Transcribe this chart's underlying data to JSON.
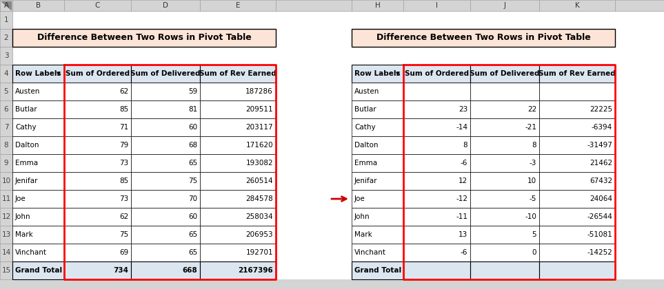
{
  "title": "Difference Between Two Rows in Pivot Table",
  "title_bg": "#fce4d6",
  "header_bg": "#dce6f1",
  "grand_total_bg": "#dce6f1",
  "excel_header_bg": "#d4d4d4",
  "cell_bg": "#ffffff",
  "arrow_color": "#cc0000",
  "table1_headers": [
    "Row Labels",
    "Sum of Ordered",
    "Sum of Delivered",
    "Sum of Rev Earned"
  ],
  "table2_headers": [
    "Row Labels",
    "Sum of Ordered",
    "Sum of Delivered",
    "Sum of Rev Earned"
  ],
  "table1_rows": [
    [
      "Austen",
      62,
      59,
      187286
    ],
    [
      "Butlar",
      85,
      81,
      209511
    ],
    [
      "Cathy",
      71,
      60,
      203117
    ],
    [
      "Dalton",
      79,
      68,
      171620
    ],
    [
      "Emma",
      73,
      65,
      193082
    ],
    [
      "Jenifar",
      85,
      75,
      260514
    ],
    [
      "Joe",
      73,
      70,
      284578
    ],
    [
      "John",
      62,
      60,
      258034
    ],
    [
      "Mark",
      75,
      65,
      206953
    ],
    [
      "Vinchant",
      69,
      65,
      192701
    ]
  ],
  "table1_grand": [
    "Grand Total",
    734,
    668,
    2167396
  ],
  "table2_rows": [
    [
      "Austen",
      null,
      null,
      null
    ],
    [
      "Butlar",
      23,
      22,
      22225
    ],
    [
      "Cathy",
      -14,
      -21,
      -6394
    ],
    [
      "Dalton",
      8,
      8,
      -31497
    ],
    [
      "Emma",
      -6,
      -3,
      21462
    ],
    [
      "Jenifar",
      12,
      10,
      67432
    ],
    [
      "Joe",
      -12,
      -5,
      24064
    ],
    [
      "John",
      -11,
      -10,
      -26544
    ],
    [
      "Mark",
      13,
      5,
      -51081
    ],
    [
      "Vinchant",
      -6,
      0,
      -14252
    ]
  ],
  "table2_grand": [
    "Grand Total",
    null,
    null,
    null
  ],
  "col_letters_left": [
    "A",
    "B",
    "C",
    "D",
    "E"
  ],
  "col_letters_right": [
    "H",
    "I",
    "J",
    "K"
  ],
  "row_numbers": [
    "1",
    "2",
    "3",
    "4",
    "5",
    "6",
    "7",
    "8",
    "9",
    "10",
    "11",
    "12",
    "13",
    "14",
    "15"
  ]
}
